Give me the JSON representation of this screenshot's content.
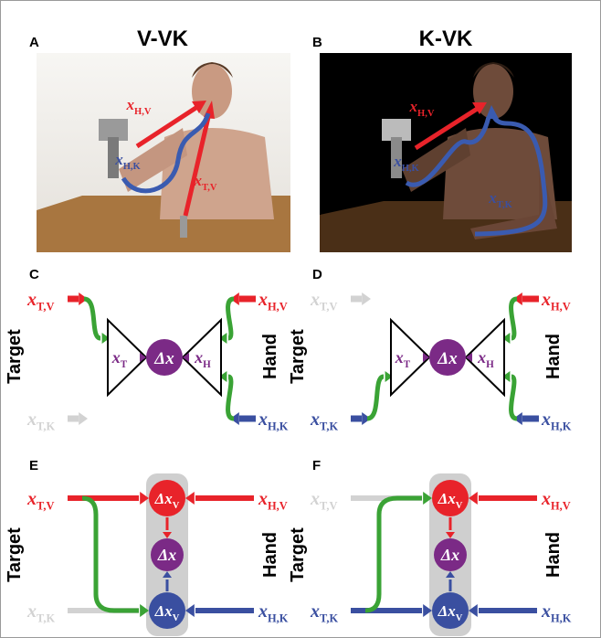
{
  "panels": {
    "a": {
      "letter": "A",
      "title": "V-VK",
      "labels": [
        {
          "symbol": "x",
          "sub": "H,V",
          "color": "#e8232a"
        },
        {
          "symbol": "x",
          "sub": "H,K",
          "color": "#3a4fa0"
        },
        {
          "symbol": "x",
          "sub": "T,V",
          "color": "#e8232a"
        }
      ]
    },
    "b": {
      "letter": "B",
      "title": "K-VK",
      "labels": [
        {
          "symbol": "x",
          "sub": "H,V",
          "color": "#e8232a"
        },
        {
          "symbol": "x",
          "sub": "H,K",
          "color": "#3a4fa0"
        },
        {
          "symbol": "x",
          "sub": "T,K",
          "color": "#3a4fa0"
        }
      ]
    },
    "c": {
      "letter": "C",
      "target": "Target",
      "hand": "Hand",
      "target_inputs": [
        {
          "symbol": "x",
          "sub": "T,V",
          "color": "#e8232a",
          "active": true
        },
        {
          "symbol": "x",
          "sub": "T,K",
          "color": "#3a4fa0",
          "active": false
        }
      ],
      "hand_inputs": [
        {
          "symbol": "x",
          "sub": "H,V",
          "color": "#e8232a",
          "active": true
        },
        {
          "symbol": "x",
          "sub": "H,K",
          "color": "#3a4fa0",
          "active": true
        }
      ],
      "nodes": [
        {
          "symbol": "x",
          "sub": "T"
        },
        {
          "symbol": "Δx"
        },
        {
          "symbol": "x",
          "sub": "H"
        }
      ]
    },
    "d": {
      "letter": "D",
      "target": "Target",
      "hand": "Hand",
      "target_inputs": [
        {
          "symbol": "x",
          "sub": "T,V",
          "color": "#e8232a",
          "active": false
        },
        {
          "symbol": "x",
          "sub": "T,K",
          "color": "#3a4fa0",
          "active": true
        }
      ],
      "hand_inputs": [
        {
          "symbol": "x",
          "sub": "H,V",
          "color": "#e8232a",
          "active": true
        },
        {
          "symbol": "x",
          "sub": "H,K",
          "color": "#3a4fa0",
          "active": true
        }
      ],
      "nodes": [
        {
          "symbol": "x",
          "sub": "T"
        },
        {
          "symbol": "Δx"
        },
        {
          "symbol": "x",
          "sub": "H"
        }
      ]
    },
    "e": {
      "letter": "E",
      "target": "Target",
      "hand": "Hand",
      "target_inputs": [
        {
          "symbol": "x",
          "sub": "T,V",
          "color": "#e8232a",
          "active": true
        },
        {
          "symbol": "x",
          "sub": "T,K",
          "color": "#3a4fa0",
          "active": false
        }
      ],
      "hand_inputs": [
        {
          "symbol": "x",
          "sub": "H,V",
          "color": "#e8232a",
          "active": true
        },
        {
          "symbol": "x",
          "sub": "H,K",
          "color": "#3a4fa0",
          "active": true
        }
      ],
      "nodes": [
        {
          "symbol": "Δx",
          "sub": "V"
        },
        {
          "symbol": "Δx"
        },
        {
          "symbol": "Δx",
          "sub": "V"
        }
      ]
    },
    "f": {
      "letter": "F",
      "target": "Target",
      "hand": "Hand",
      "target_inputs": [
        {
          "symbol": "x",
          "sub": "T,V",
          "color": "#e8232a",
          "active": false
        },
        {
          "symbol": "x",
          "sub": "T,K",
          "color": "#3a4fa0",
          "active": true
        }
      ],
      "hand_inputs": [
        {
          "symbol": "x",
          "sub": "H,V",
          "color": "#e8232a",
          "active": true
        },
        {
          "symbol": "x",
          "sub": "H,K",
          "color": "#3a4fa0",
          "active": true
        }
      ],
      "nodes": [
        {
          "symbol": "Δx",
          "sub": "V"
        },
        {
          "symbol": "Δx"
        },
        {
          "symbol": "Δx",
          "sub": "V"
        }
      ]
    }
  }
}
